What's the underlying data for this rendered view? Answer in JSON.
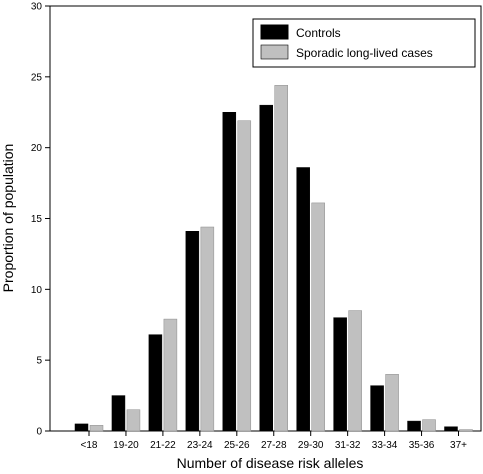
{
  "chart_data": {
    "type": "bar",
    "title": "",
    "xlabel": "Number of disease risk alleles",
    "ylabel": "Proportion of population",
    "ylim": [
      0,
      30
    ],
    "yticks": [
      "0",
      "5",
      "10",
      "15",
      "20",
      "25",
      "30"
    ],
    "categories": [
      "<18",
      "19-20",
      "21-22",
      "23-24",
      "25-26",
      "27-28",
      "29-30",
      "31-32",
      "33-34",
      "35-36",
      "37+"
    ],
    "series": [
      {
        "name": "Controls",
        "color": "#000000",
        "values": [
          0.5,
          2.5,
          6.8,
          14.1,
          22.5,
          23.0,
          18.6,
          8.0,
          3.2,
          0.7,
          0.3
        ]
      },
      {
        "name": "Sporadic long-lived cases",
        "color": "#c0c0c0",
        "values": [
          0.4,
          1.5,
          7.9,
          14.4,
          21.9,
          24.4,
          16.1,
          8.5,
          4.0,
          0.8,
          0.1
        ]
      }
    ],
    "legend_position": "top-right",
    "grid": false
  }
}
